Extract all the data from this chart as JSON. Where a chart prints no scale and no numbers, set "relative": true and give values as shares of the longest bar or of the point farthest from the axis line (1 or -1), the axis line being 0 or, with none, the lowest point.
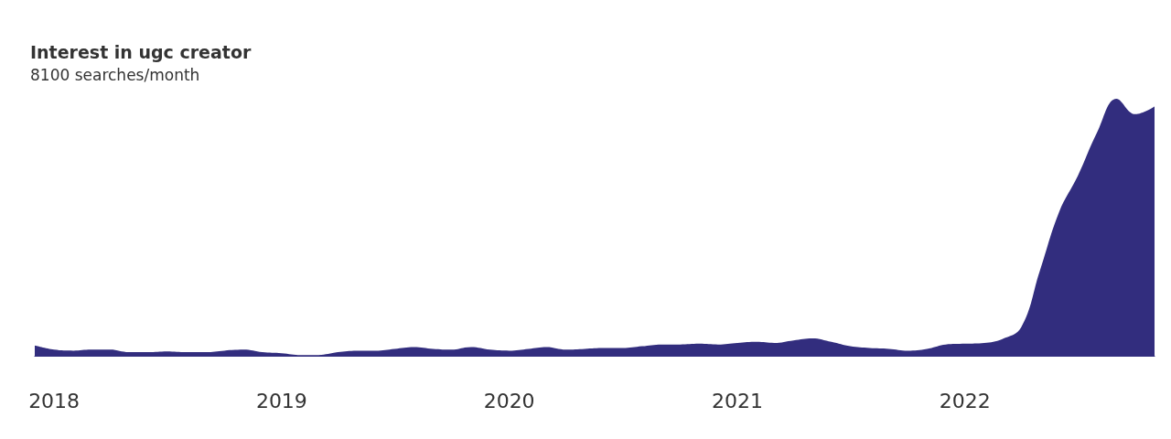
{
  "chart_data": {
    "type": "area",
    "title": "Interest in ugc creator",
    "subtitle": "8100 searches/month",
    "relative": true,
    "color": "#322d7e",
    "x": [
      "2017-12",
      "2018-01",
      "2018-02",
      "2018-03",
      "2018-04",
      "2018-05",
      "2018-06",
      "2018-07",
      "2018-08",
      "2018-09",
      "2018-10",
      "2018-11",
      "2018-12",
      "2019-01",
      "2019-02",
      "2019-03",
      "2019-04",
      "2019-05",
      "2019-06",
      "2019-07",
      "2019-08",
      "2019-09",
      "2019-10",
      "2019-11",
      "2019-12",
      "2020-01",
      "2020-02",
      "2020-03",
      "2020-04",
      "2020-05",
      "2020-06",
      "2020-07",
      "2020-08",
      "2020-09",
      "2020-10",
      "2020-11",
      "2020-12",
      "2021-01",
      "2021-02",
      "2021-03",
      "2021-04",
      "2021-05",
      "2021-06",
      "2021-07",
      "2021-08",
      "2021-09",
      "2021-10",
      "2021-11",
      "2021-12",
      "2022-01",
      "2022-02",
      "2022-03",
      "2022-04",
      "2022-05",
      "2022-06",
      "2022-07",
      "2022-08",
      "2022-09",
      "2022-10",
      "2022-11"
    ],
    "values": [
      0.04,
      0.024,
      0.02,
      0.024,
      0.024,
      0.014,
      0.014,
      0.017,
      0.014,
      0.014,
      0.02,
      0.024,
      0.014,
      0.01,
      0.003,
      0.003,
      0.014,
      0.02,
      0.02,
      0.027,
      0.034,
      0.027,
      0.024,
      0.034,
      0.024,
      0.02,
      0.027,
      0.034,
      0.024,
      0.027,
      0.03,
      0.03,
      0.037,
      0.044,
      0.044,
      0.047,
      0.044,
      0.05,
      0.054,
      0.05,
      0.06,
      0.068,
      0.054,
      0.037,
      0.03,
      0.027,
      0.02,
      0.027,
      0.044,
      0.047,
      0.05,
      0.064,
      0.11,
      0.33,
      0.56,
      0.7,
      0.87,
      1.0,
      0.94,
      0.97
    ],
    "xlim": [
      "2017-12",
      "2022-11"
    ],
    "xticks": [
      "2018",
      "2019",
      "2020",
      "2021",
      "2022"
    ]
  }
}
